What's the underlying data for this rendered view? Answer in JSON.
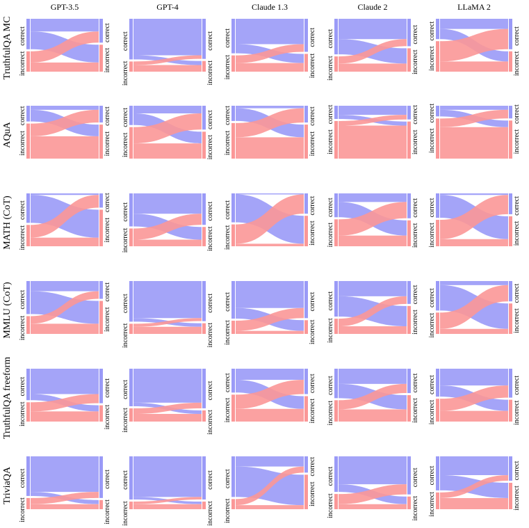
{
  "colors": {
    "correct": "#9a9af7",
    "incorrect": "#fb9797",
    "bar_correct": "#9a9af7",
    "bar_incorrect": "#fb9797"
  },
  "chart_data": {
    "type": "sankey",
    "description_labels": {
      "correct": "correct",
      "incorrect": "incorrect"
    },
    "columns": [
      "GPT-3.5",
      "GPT-4",
      "Claude 1.3",
      "Claude 2",
      "LLaMA 2"
    ],
    "rows": [
      "TruthfulQA MC",
      "AQuA",
      "MATH (CoT)",
      "MMLU (CoT)",
      "TruthfulQA freeform",
      "TriviaQA"
    ],
    "flows": [
      [
        {
          "cc": 0.25,
          "ci": 0.35,
          "ic": 0.22,
          "ii": 0.18
        },
        {
          "cc": 0.72,
          "ci": 0.08,
          "ic": 0.07,
          "ii": 0.13
        },
        {
          "cc": 0.5,
          "ci": 0.18,
          "ic": 0.15,
          "ii": 0.17
        },
        {
          "cc": 0.4,
          "ci": 0.3,
          "ic": 0.14,
          "ii": 0.16
        },
        {
          "cc": 0.2,
          "ci": 0.2,
          "ic": 0.4,
          "ii": 0.2
        }
      ],
      [
        {
          "cc": 0.08,
          "ci": 0.23,
          "ic": 0.25,
          "ii": 0.44
        },
        {
          "cc": 0.15,
          "ci": 0.23,
          "ic": 0.32,
          "ii": 0.3
        },
        {
          "cc": 0.05,
          "ci": 0.25,
          "ic": 0.28,
          "ii": 0.42
        },
        {
          "cc": 0.18,
          "ci": 0.08,
          "ic": 0.09,
          "ii": 0.65
        },
        {
          "cc": 0.08,
          "ci": 0.13,
          "ic": 0.17,
          "ii": 0.62
        }
      ],
      [
        {
          "cc": 0.03,
          "ci": 0.55,
          "ic": 0.25,
          "ii": 0.17
        },
        {
          "cc": 0.4,
          "ci": 0.25,
          "ic": 0.22,
          "ii": 0.13
        },
        {
          "cc": 0.02,
          "ci": 0.55,
          "ic": 0.38,
          "ii": 0.05
        },
        {
          "cc": 0.17,
          "ci": 0.3,
          "ic": 0.32,
          "ii": 0.21
        },
        {
          "cc": 0.03,
          "ci": 0.45,
          "ic": 0.38,
          "ii": 0.14
        }
      ],
      [
        {
          "cc": 0.2,
          "ci": 0.45,
          "ic": 0.15,
          "ii": 0.2
        },
        {
          "cc": 0.73,
          "ci": 0.07,
          "ic": 0.06,
          "ii": 0.14
        },
        {
          "cc": 0.53,
          "ci": 0.21,
          "ic": 0.2,
          "ii": 0.06
        },
        {
          "cc": 0.3,
          "ci": 0.4,
          "ic": 0.15,
          "ii": 0.15
        },
        {
          "cc": 0.08,
          "ci": 0.5,
          "ic": 0.32,
          "ii": 0.1
        }
      ],
      [
        {
          "cc": 0.5,
          "ci": 0.12,
          "ic": 0.18,
          "ii": 0.2
        },
        {
          "cc": 0.67,
          "ci": 0.07,
          "ic": 0.11,
          "ii": 0.15
        },
        {
          "cc": 0.22,
          "ci": 0.25,
          "ic": 0.28,
          "ii": 0.25
        },
        {
          "cc": 0.3,
          "ci": 0.28,
          "ic": 0.18,
          "ii": 0.24
        },
        {
          "cc": 0.33,
          "ci": 0.22,
          "ic": 0.24,
          "ii": 0.21
        }
      ],
      [
        {
          "cc": 0.7,
          "ci": 0.08,
          "ic": 0.12,
          "ii": 0.1
        },
        {
          "cc": 0.8,
          "ci": 0.05,
          "ic": 0.05,
          "ii": 0.1
        },
        {
          "cc": 0.2,
          "ci": 0.6,
          "ic": 0.12,
          "ii": 0.08
        },
        {
          "cc": 0.55,
          "ci": 0.15,
          "ic": 0.2,
          "ii": 0.1
        },
        {
          "cc": 0.37,
          "ci": 0.3,
          "ic": 0.11,
          "ii": 0.22
        }
      ]
    ]
  }
}
